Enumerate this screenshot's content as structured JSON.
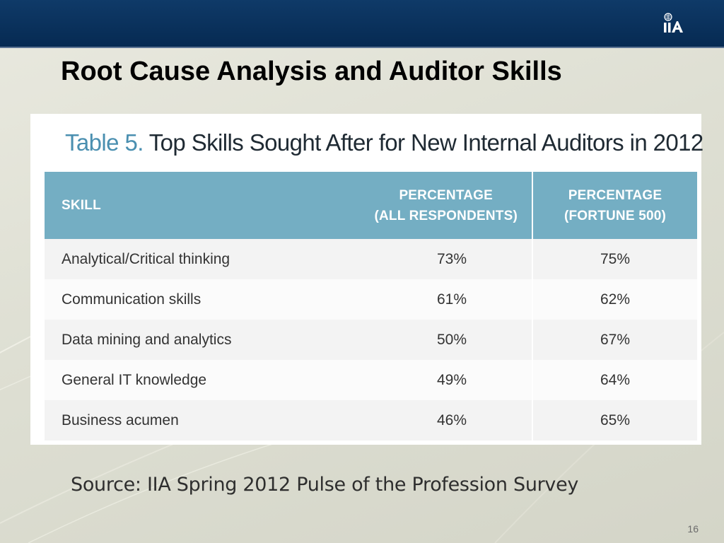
{
  "slide": {
    "title": "Root Cause Analysis and Auditor Skills",
    "logo_text": "IIA",
    "page_number": "16",
    "source": "Source: IIA Spring 2012 Pulse of the Profession Survey"
  },
  "table": {
    "caption_prefix": "Table 5.",
    "caption_text": "Top Skills Sought After for New Internal Auditors in 2012",
    "headers": {
      "skill": "SKILL",
      "all_line1": "PERCENTAGE",
      "all_line2": "(ALL RESPONDENTS)",
      "fortune_line1": "PERCENTAGE",
      "fortune_line2": "(FORTUNE 500)"
    },
    "rows": [
      {
        "skill": "Analytical/Critical thinking",
        "all": "73%",
        "fortune": "75%"
      },
      {
        "skill": "Communication skills",
        "all": "61%",
        "fortune": "62%"
      },
      {
        "skill": "Data mining and analytics",
        "all": "50%",
        "fortune": "67%"
      },
      {
        "skill": "General IT knowledge",
        "all": "49%",
        "fortune": "64%"
      },
      {
        "skill": "Business acumen",
        "all": "46%",
        "fortune": "65%"
      }
    ]
  },
  "colors": {
    "header_band": "#062a52",
    "table_header": "#74aec3",
    "caption_accent": "#4a8fb0"
  }
}
